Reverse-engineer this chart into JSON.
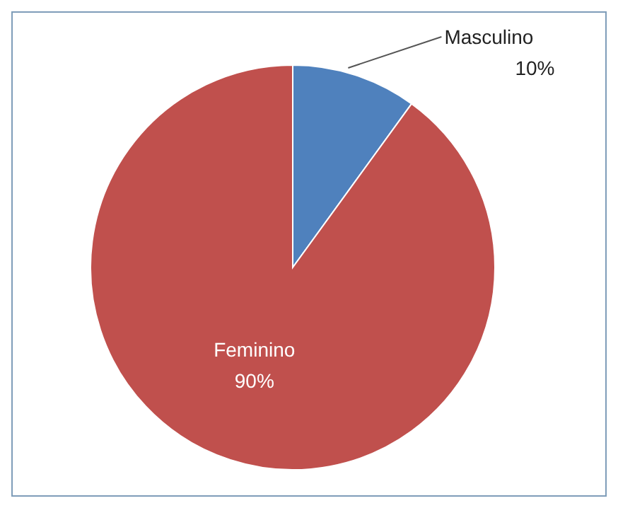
{
  "chart_data": {
    "type": "pie",
    "categories": [
      "Masculino",
      "Feminino"
    ],
    "values": [
      10,
      90
    ],
    "colors": [
      "#4f81bd",
      "#c0504d"
    ],
    "value_labels": [
      "10%",
      "90%"
    ]
  }
}
